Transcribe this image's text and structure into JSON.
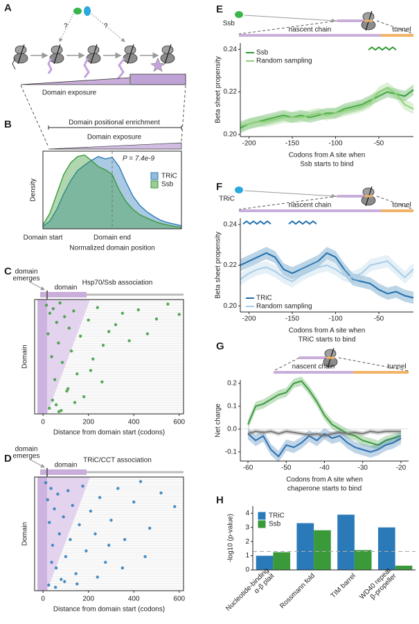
{
  "panel_labels": [
    "A",
    "B",
    "C",
    "D",
    "E",
    "F",
    "G",
    "H"
  ],
  "panel_a": {
    "question_marks": [
      "?",
      "?"
    ],
    "label": "Domain exposure"
  },
  "chart_data": [
    {
      "type": "area",
      "header": [
        "Domain positional enrichment",
        "Domain exposure"
      ],
      "annotation": "P = 7.4e-9",
      "xlabel": "Normalized domain position",
      "ylabel": "Density",
      "grid": "dashed",
      "legend": "right",
      "x": [
        0,
        0.1,
        0.2,
        0.3,
        0.4,
        0.5,
        0.6,
        0.7,
        0.8,
        0.9,
        1,
        1.1,
        1.2,
        1.3,
        1.4,
        1.5,
        1.6,
        1.7,
        1.8,
        1.9,
        2
      ],
      "xlim": [
        0,
        2
      ],
      "xticks": [
        {
          "value": 0,
          "label": "Domain start"
        },
        {
          "value": 1,
          "label": "Domain end"
        }
      ],
      "ylim": [
        0,
        1
      ],
      "series": [
        {
          "name": "TRiC",
          "color": "#2a7ab9",
          "values": [
            0.03,
            0.1,
            0.25,
            0.45,
            0.62,
            0.75,
            0.82,
            0.88,
            0.93,
            0.9,
            0.92,
            0.8,
            0.6,
            0.42,
            0.3,
            0.22,
            0.16,
            0.11,
            0.08,
            0.06,
            0.04
          ]
        },
        {
          "name": "Ssb",
          "color": "#3a9a3a",
          "values": [
            0.05,
            0.2,
            0.45,
            0.7,
            0.85,
            0.93,
            0.95,
            0.88,
            0.8,
            0.76,
            0.7,
            0.5,
            0.35,
            0.25,
            0.18,
            0.14,
            0.1,
            0.07,
            0.05,
            0.03,
            0.02
          ]
        }
      ]
    },
    {
      "type": "scatter",
      "title": "Hsp70/Ssb association",
      "annotations": {
        "emerges": [
          "domain",
          "emerges"
        ],
        "domain": "domain"
      },
      "xlabel": "Distance from domain start (codons)",
      "ylabel": "Domain",
      "color": "#3a9a3a",
      "xlim": [
        -37,
        619
      ],
      "xticks": [
        0,
        200,
        400,
        600
      ],
      "ylim": [
        0,
        100
      ],
      "x": [
        15,
        22,
        30,
        38,
        45,
        52,
        60,
        68,
        75,
        85,
        95,
        105,
        115,
        125,
        135,
        150,
        165,
        180,
        200,
        220,
        240,
        265,
        290,
        320,
        350,
        380,
        420,
        460,
        500,
        550,
        600,
        28,
        42,
        58,
        80,
        110,
        140,
        70,
        210,
        260
      ],
      "values": [
        95,
        70,
        88,
        50,
        92,
        30,
        80,
        62,
        97,
        45,
        85,
        20,
        75,
        55,
        90,
        35,
        68,
        15,
        82,
        48,
        93,
        60,
        72,
        78,
        88,
        64,
        91,
        70,
        83,
        96,
        87,
        5,
        12,
        8,
        3,
        22,
        10,
        2,
        38,
        28
      ]
    },
    {
      "type": "scatter",
      "title": "TRiC/CCT association",
      "annotations": {
        "emerges": [
          "domain",
          "emerges"
        ],
        "domain": "domain"
      },
      "xlabel": "Distance from domain start (codons)",
      "ylabel": "Domain",
      "color": "#2a7ab9",
      "xlim": [
        -37,
        619
      ],
      "xticks": [
        0,
        200,
        400,
        600
      ],
      "ylim": [
        0,
        100
      ],
      "x": [
        12,
        20,
        28,
        35,
        42,
        50,
        58,
        65,
        72,
        80,
        90,
        100,
        110,
        120,
        130,
        145,
        160,
        175,
        190,
        210,
        230,
        250,
        275,
        300,
        330,
        360,
        400,
        430,
        470,
        520,
        580,
        25,
        38,
        55,
        95,
        150,
        240,
        290,
        350,
        450
      ],
      "values": [
        95,
        80,
        60,
        90,
        40,
        72,
        20,
        85,
        50,
        10,
        65,
        30,
        88,
        45,
        75,
        15,
        58,
        92,
        35,
        70,
        50,
        82,
        25,
        62,
        90,
        45,
        78,
        96,
        55,
        86,
        74,
        5,
        25,
        3,
        8,
        6,
        12,
        40,
        20,
        30
      ]
    },
    {
      "type": "line",
      "header": {
        "protein": "Ssb",
        "chain": "nascent chain",
        "tunnel": "tunnel"
      },
      "xlabel": [
        "Codons from A site when",
        "Ssb starts to bind"
      ],
      "ylabel": "Beta sheet propensity",
      "legend": "top-left",
      "x": [
        -210,
        -200,
        -190,
        -180,
        -170,
        -160,
        -150,
        -140,
        -130,
        -120,
        -110,
        -100,
        -90,
        -80,
        -70,
        -60,
        -50,
        -40,
        -30,
        -20,
        -10
      ],
      "xlim": [
        -210,
        -10
      ],
      "xticks": [
        -200,
        -150,
        -100,
        -50
      ],
      "ylim": [
        0.199,
        0.243
      ],
      "yticks": [
        {
          "value": 0.2,
          "label": "0.20"
        },
        0.22,
        0.24
      ],
      "series": [
        {
          "name": "Ssb",
          "color": "#2e9a2e",
          "error": 0.0025,
          "values": [
            0.203,
            0.205,
            0.206,
            0.207,
            0.208,
            0.209,
            0.208,
            0.209,
            0.208,
            0.209,
            0.21,
            0.21,
            0.212,
            0.213,
            0.214,
            0.216,
            0.218,
            0.22,
            0.219,
            0.218,
            0.221
          ]
        },
        {
          "name": "Random sampling",
          "color": "#8fd07a",
          "error": 0.0025,
          "values": [
            0.204,
            0.205,
            0.206,
            0.206,
            0.207,
            0.208,
            0.208,
            0.208,
            0.209,
            0.21,
            0.209,
            0.21,
            0.211,
            0.212,
            0.213,
            0.215,
            0.22,
            0.222,
            0.219,
            0.214,
            0.212
          ]
        }
      ]
    },
    {
      "type": "line",
      "header": {
        "protein": "TRiC",
        "chain": "nascent chain",
        "tunnel": "tunnel"
      },
      "xlabel": [
        "Codons from A site when",
        "TRiC starts to bind"
      ],
      "ylabel": "Beta sheet propensity",
      "legend": "bottom-left",
      "x": [
        -210,
        -200,
        -190,
        -180,
        -170,
        -160,
        -150,
        -140,
        -130,
        -120,
        -110,
        -100,
        -90,
        -80,
        -70,
        -60,
        -50,
        -40,
        -30,
        -20,
        -10
      ],
      "xlim": [
        -210,
        -10
      ],
      "xticks": [
        -200,
        -150,
        -100,
        -50
      ],
      "ylim": [
        0.197,
        0.243
      ],
      "yticks": [
        {
          "value": 0.2,
          "label": "0.20"
        },
        0.22,
        0.24
      ],
      "series": [
        {
          "name": "TRiC",
          "color": "#1f6fad",
          "error": 0.003,
          "values": [
            0.22,
            0.222,
            0.224,
            0.226,
            0.224,
            0.218,
            0.216,
            0.218,
            0.22,
            0.222,
            0.226,
            0.224,
            0.218,
            0.213,
            0.212,
            0.211,
            0.208,
            0.206,
            0.207,
            0.205,
            0.204
          ]
        },
        {
          "name": "Random sampling",
          "color": "#a9cce6",
          "error": 0.003,
          "values": [
            0.213,
            0.216,
            0.218,
            0.219,
            0.217,
            0.214,
            0.212,
            0.215,
            0.217,
            0.219,
            0.22,
            0.218,
            0.215,
            0.214,
            0.216,
            0.22,
            0.221,
            0.222,
            0.218,
            0.214,
            0.218
          ]
        }
      ]
    },
    {
      "type": "line",
      "header": {
        "chain": "nascent chain",
        "tunnel": "tunnel"
      },
      "xlabel": [
        "Codons from A site when",
        "chaperone starts to bind"
      ],
      "ylabel": "Net charge",
      "x": [
        -60,
        -58,
        -56,
        -54,
        -52,
        -50,
        -48,
        -46,
        -44,
        -42,
        -40,
        -38,
        -36,
        -34,
        -32,
        -30,
        -28,
        -26,
        -24,
        -22,
        -20
      ],
      "xlim": [
        -62,
        -18
      ],
      "xticks": [
        -60,
        -50,
        -40,
        -30,
        -20
      ],
      "ylim": [
        -0.14,
        0.215
      ],
      "yticks": [
        -0.1,
        {
          "value": 0,
          "label": "0.0"
        },
        0.1,
        0.2
      ],
      "series": [
        {
          "color": "#3a9a3a",
          "error": 0.02,
          "values": [
            0.02,
            0.1,
            0.11,
            0.13,
            0.15,
            0.16,
            0.2,
            0.21,
            0.17,
            0.12,
            0.06,
            0.02,
            0,
            -0.02,
            -0.03,
            -0.05,
            -0.06,
            -0.07,
            -0.05,
            -0.04,
            -0.03
          ]
        },
        {
          "color": "#2a6fb0",
          "error": 0.025,
          "values": [
            -0.02,
            -0.05,
            -0.03,
            -0.09,
            -0.12,
            -0.07,
            -0.08,
            -0.06,
            -0.03,
            -0.05,
            -0.02,
            -0.04,
            -0.03,
            -0.06,
            -0.08,
            -0.09,
            -0.1,
            -0.09,
            -0.07,
            -0.06,
            -0.04
          ]
        },
        {
          "color": "#777777",
          "error": 0.01,
          "values": [
            -0.02,
            -0.01,
            -0.015,
            -0.01,
            -0.02,
            -0.01,
            -0.015,
            -0.02,
            -0.025,
            -0.02,
            -0.03,
            -0.02,
            -0.015,
            -0.02,
            -0.015,
            -0.02,
            -0.01,
            -0.015,
            -0.01,
            -0.01,
            -0.01
          ]
        }
      ]
    },
    {
      "type": "bar",
      "ylabel": "-log10 (p-value)",
      "legend": "top-left",
      "threshold": 1.3,
      "categories": [
        [
          "Nucleotide-binding",
          "α-β plait"
        ],
        [
          "Rossmann fold"
        ],
        [
          "TIM barrel"
        ],
        [
          "WD40 repeat",
          "β-propeller"
        ]
      ],
      "ylim": [
        0,
        4.5
      ],
      "yticks": [
        0,
        1,
        2,
        3,
        4
      ],
      "series": [
        {
          "name": "TRiC",
          "color": "#2a7ab9",
          "values": [
            1.0,
            3.3,
            3.9,
            3.0
          ]
        },
        {
          "name": "Ssb",
          "color": "#3a9a3a",
          "values": [
            1.25,
            2.8,
            1.4,
            0.3
          ]
        }
      ]
    }
  ]
}
